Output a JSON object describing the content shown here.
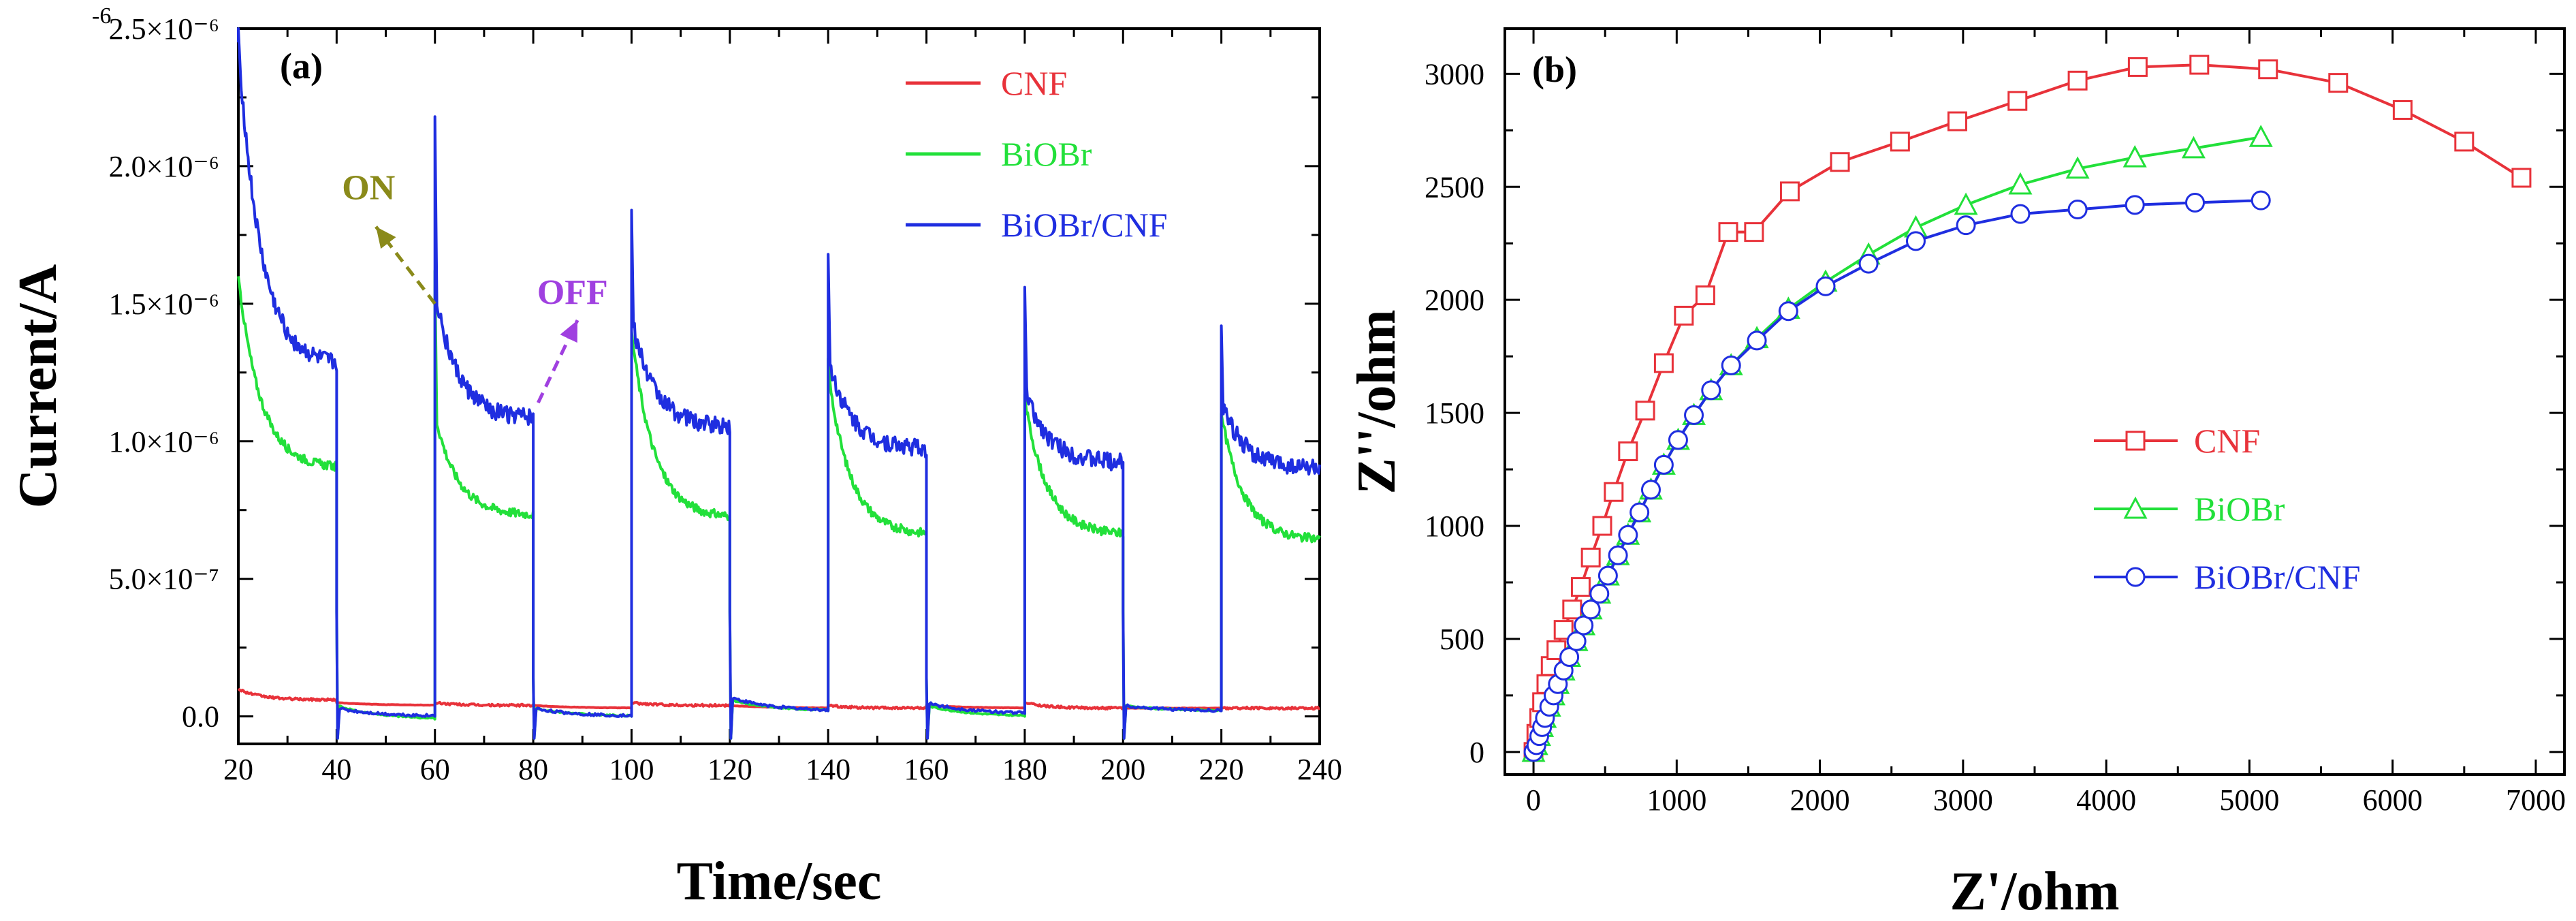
{
  "colors": {
    "cnf": "#e8323a",
    "biobr": "#22e03a",
    "composite": "#1f2ee0",
    "on_arrow": "#8a8a1a",
    "off_arrow": "#a040e0",
    "axis": "#000000"
  },
  "chart_data": [
    {
      "type": "line",
      "panel_label": "(a)",
      "xlabel": "Time/sec",
      "ylabel": "Current/A",
      "xlim": [
        20,
        240
      ],
      "ylim": [
        -1e-07,
        2.5e-06
      ],
      "xticks": [
        20,
        40,
        60,
        80,
        100,
        120,
        140,
        160,
        180,
        200,
        220,
        240
      ],
      "yticks": [
        {
          "value": 0,
          "label": "0.0"
        },
        {
          "value": 5e-07,
          "label": "5.0×10⁻⁷"
        },
        {
          "value": 1e-06,
          "label": "1.0×10⁻⁶"
        },
        {
          "value": 1.5e-06,
          "label": "1.5×10⁻⁶"
        },
        {
          "value": 2e-06,
          "label": "2.0×10⁻⁶"
        },
        {
          "value": 2.5e-06,
          "label": "2.5×10⁻⁶"
        }
      ],
      "top_tick_label_fragment": "-6",
      "legend_position": "top-right",
      "series": [
        {
          "name": "CNF",
          "key": "cnf",
          "on_start": [
            1e-07,
            5e-08,
            5e-08,
            4e-08,
            5e-08,
            3e-08
          ],
          "on_end": [
            6e-08,
            4e-08,
            4e-08,
            3e-08,
            3e-08,
            3e-08
          ],
          "off_start": [
            5e-08,
            4e-08,
            4e-08,
            4e-08,
            3e-08
          ],
          "off_end": [
            4e-08,
            3e-08,
            3e-08,
            3e-08,
            3e-08
          ]
        },
        {
          "name": "BiOBr",
          "key": "biobr",
          "on_start": [
            1.6e-06,
            1.1e-06,
            1.4e-06,
            1.25e-06,
            1.15e-06,
            1.1e-06
          ],
          "on_end": [
            9e-07,
            7.3e-07,
            7.2e-07,
            6.6e-07,
            6.6e-07,
            6.4e-07
          ],
          "off_start": [
            4e-08,
            3e-08,
            6e-08,
            4e-08,
            4e-08
          ],
          "off_end": [
            -1e-08,
            0,
            2e-08,
            0,
            2e-08
          ]
        },
        {
          "name": "BiOBr/CNF",
          "key": "composite",
          "on_start": [
            2.45e-06,
            1.55e-06,
            1.45e-06,
            1.3e-06,
            1.2e-06,
            1.15e-06
          ],
          "on_end": [
            1.27e-06,
            1.08e-06,
            1.05e-06,
            9.7e-07,
            9.2e-07,
            9e-07
          ],
          "off_start": [
            3e-08,
            3e-08,
            7e-08,
            5e-08,
            4e-08
          ],
          "off_end": [
            0,
            0,
            2e-08,
            1e-08,
            2e-08
          ]
        }
      ],
      "on_spikes": [
        {
          "cnf": 1e-07,
          "biobr": 1.6e-06,
          "composite": 2.5e-06
        },
        {
          "cnf": 5e-08,
          "biobr": 1.62e-06,
          "composite": 2.18e-06
        },
        {
          "cnf": 5e-08,
          "biobr": 1.4e-06,
          "composite": 1.84e-06
        },
        {
          "cnf": 4e-08,
          "biobr": 1.3e-06,
          "composite": 1.68e-06
        },
        {
          "cnf": 5e-08,
          "biobr": 1.17e-06,
          "composite": 1.56e-06
        },
        {
          "cnf": 3e-08,
          "biobr": 1.1e-06,
          "composite": 1.42e-06
        }
      ],
      "annotations": [
        {
          "text": "ON",
          "key": "on_arrow",
          "from_x": 60,
          "from_y": 1.5e-06,
          "to_x": 48,
          "to_y": 1.78e-06,
          "text_x": 46.5,
          "text_y": 1.88e-06
        },
        {
          "text": "OFF",
          "key": "off_arrow",
          "from_x": 81,
          "from_y": 1.14e-06,
          "to_x": 89,
          "to_y": 1.44e-06,
          "text_x": 88,
          "text_y": 1.5e-06
        }
      ]
    },
    {
      "type": "line",
      "panel_label": "(b)",
      "xlabel": "Z'/ohm",
      "ylabel": "Z''/ohm",
      "xlim": [
        -200,
        7200
      ],
      "ylim": [
        -100,
        3200
      ],
      "xticks": [
        0,
        1000,
        2000,
        3000,
        4000,
        5000,
        6000,
        7000
      ],
      "yticks": [
        0,
        500,
        1000,
        1500,
        2000,
        2500,
        3000
      ],
      "legend_position": "center-right",
      "series": [
        {
          "name": "CNF",
          "key": "cnf",
          "marker": "square",
          "x": [
            0,
            20,
            40,
            60,
            90,
            120,
            160,
            210,
            270,
            330,
            400,
            480,
            560,
            660,
            780,
            910,
            1050,
            1200,
            1360,
            1540,
            1790,
            2140,
            2560,
            2960,
            3380,
            3800,
            4220,
            4650,
            5130,
            5620,
            6070,
            6500,
            6900
          ],
          "y": [
            0,
            80,
            150,
            220,
            300,
            380,
            450,
            540,
            630,
            730,
            860,
            1000,
            1150,
            1330,
            1510,
            1720,
            1930,
            2020,
            2300,
            2300,
            2480,
            2610,
            2700,
            2790,
            2880,
            2970,
            3030,
            3040,
            3020,
            2960,
            2840,
            2700,
            2540
          ]
        },
        {
          "name": "BiOBr",
          "key": "biobr",
          "marker": "triangle",
          "x": [
            0,
            20,
            40,
            60,
            80,
            110,
            140,
            170,
            210,
            250,
            300,
            350,
            400,
            460,
            520,
            590,
            660,
            740,
            820,
            910,
            1010,
            1120,
            1240,
            1380,
            1560,
            1780,
            2040,
            2340,
            2670,
            3020,
            3400,
            3800,
            4200,
            4610,
            5080
          ],
          "y": [
            0,
            30,
            70,
            110,
            150,
            200,
            250,
            300,
            360,
            420,
            490,
            560,
            630,
            700,
            780,
            870,
            960,
            1060,
            1160,
            1270,
            1380,
            1490,
            1600,
            1710,
            1830,
            1960,
            2080,
            2200,
            2320,
            2420,
            2510,
            2580,
            2630,
            2670,
            2720
          ]
        },
        {
          "name": "BiOBr/CNF",
          "key": "composite",
          "marker": "circle",
          "x": [
            0,
            20,
            40,
            60,
            80,
            110,
            140,
            170,
            210,
            250,
            300,
            350,
            400,
            460,
            520,
            590,
            660,
            740,
            820,
            910,
            1010,
            1120,
            1240,
            1380,
            1560,
            1780,
            2040,
            2340,
            2670,
            3020,
            3400,
            3800,
            4200,
            4620,
            5080
          ],
          "y": [
            0,
            30,
            70,
            110,
            150,
            200,
            250,
            300,
            360,
            420,
            490,
            560,
            630,
            700,
            780,
            870,
            960,
            1060,
            1160,
            1270,
            1380,
            1490,
            1600,
            1710,
            1820,
            1950,
            2060,
            2160,
            2260,
            2330,
            2380,
            2400,
            2420,
            2430,
            2440
          ]
        }
      ]
    }
  ]
}
